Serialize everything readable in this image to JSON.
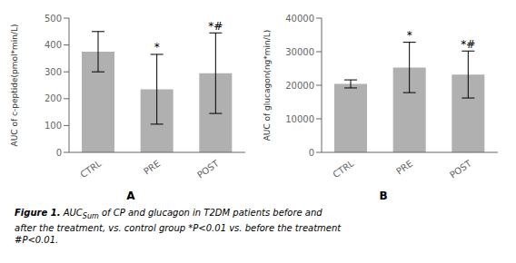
{
  "chart_data": [
    {
      "type": "bar",
      "title": "A",
      "categories": [
        "CTRL",
        "PRE",
        "POST"
      ],
      "values": [
        375,
        235,
        295
      ],
      "errors": [
        75,
        130,
        150
      ],
      "annotations": [
        null,
        "*",
        "*#"
      ],
      "ylabel": "AUC of c-peptide(pmol*min/L)",
      "ylim": [
        0,
        500
      ],
      "yticks": [
        0,
        100,
        200,
        300,
        400,
        500
      ],
      "color": "#b0b0b0"
    },
    {
      "type": "bar",
      "title": "B",
      "categories": [
        "CTRL",
        "PRE",
        "POST"
      ],
      "values": [
        20400,
        25300,
        23200
      ],
      "errors": [
        1200,
        7500,
        7000
      ],
      "annotations": [
        null,
        "*",
        "*#"
      ],
      "ylabel": "AUC of glucagon(ng*min/L)",
      "ylim": [
        0,
        40000
      ],
      "yticks": [
        0,
        10000,
        20000,
        30000,
        40000
      ],
      "color": "#b0b0b0"
    }
  ],
  "caption": [
    [
      "Figure 1.",
      " AUC",
      "Sum",
      " of CP and glucagon in T2DM patients before and"
    ],
    [
      "after the treatment, vs. control group ",
      "*",
      "P<0.01 vs. before the treatment"
    ],
    [
      "#",
      "P<0.01."
    ]
  ]
}
